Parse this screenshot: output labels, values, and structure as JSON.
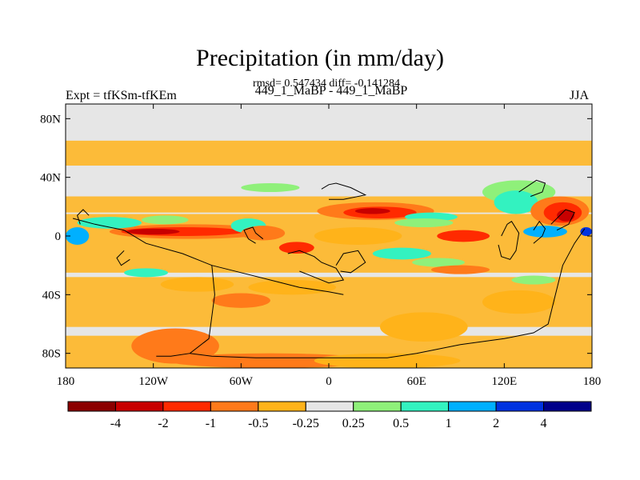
{
  "chart_data": {
    "type": "heatmap",
    "title": "Precipitation (in mm/day)",
    "subtitle": "rmsd= 0.547434 diff= -0.141284",
    "left_label": "Expt = tfKSm-tfKEm",
    "center_label": "449_1_MaBP - 449_1_MaBP",
    "right_label": "JJA",
    "variable": "precipitation difference",
    "units": "mm/day",
    "x_range": [
      -180,
      180
    ],
    "y_range": [
      -90,
      90
    ],
    "x_ticks": [
      {
        "value": -180,
        "label": "180"
      },
      {
        "value": -120,
        "label": "120W"
      },
      {
        "value": -60,
        "label": "60W"
      },
      {
        "value": 0,
        "label": "0"
      },
      {
        "value": 60,
        "label": "60E"
      },
      {
        "value": 120,
        "label": "120E"
      },
      {
        "value": 180,
        "label": "180"
      }
    ],
    "y_ticks": [
      {
        "value": 80,
        "label": "80N"
      },
      {
        "value": 40,
        "label": "40N"
      },
      {
        "value": 0,
        "label": "0"
      },
      {
        "value": -40,
        "label": "40S"
      },
      {
        "value": -80,
        "label": "80S"
      }
    ],
    "colorbar": {
      "colors": [
        "#8b0000",
        "#c80000",
        "#ff2a00",
        "#ff7a1a",
        "#ffb31a",
        "#e6e6e6",
        "#8ff07a",
        "#33f2c0",
        "#00b0ff",
        "#0033e0",
        "#00008a"
      ],
      "labels": [
        "-4",
        "-2",
        "-1",
        "-0.5",
        "-0.25",
        "0.25",
        "0.5",
        "1",
        "2",
        "4"
      ]
    },
    "fields": [
      {
        "lon": -95,
        "lat": 3,
        "rlon": 55,
        "rlat": 5,
        "color": "#ff7a1a"
      },
      {
        "lon": -100,
        "lat": 3,
        "rlon": 42,
        "rlat": 3,
        "color": "#ff2a00"
      },
      {
        "lon": -120,
        "lat": 3,
        "rlon": 18,
        "rlat": 2,
        "color": "#c80000"
      },
      {
        "lon": -150,
        "lat": 9,
        "rlon": 22,
        "rlat": 4,
        "color": "#33f2c0"
      },
      {
        "lon": -112,
        "lat": 11,
        "rlon": 16,
        "rlat": 3,
        "color": "#8ff07a"
      },
      {
        "lon": -55,
        "lat": 7,
        "rlon": 12,
        "rlat": 5,
        "color": "#33f2c0"
      },
      {
        "lon": -45,
        "lat": 2,
        "rlon": 15,
        "rlat": 5,
        "color": "#ff7a1a"
      },
      {
        "lon": -172,
        "lat": 0,
        "rlon": 8,
        "rlat": 6,
        "color": "#00b0ff"
      },
      {
        "lon": -22,
        "lat": -8,
        "rlon": 12,
        "rlat": 4,
        "color": "#ff2a00"
      },
      {
        "lon": -40,
        "lat": 33,
        "rlon": 20,
        "rlat": 3,
        "color": "#8ff07a"
      },
      {
        "lon": 32,
        "lat": 17,
        "rlon": 40,
        "rlat": 6,
        "color": "#ff7a1a"
      },
      {
        "lon": 35,
        "lat": 16,
        "rlon": 25,
        "rlat": 4,
        "color": "#ff2a00"
      },
      {
        "lon": 30,
        "lat": 17,
        "rlon": 12,
        "rlat": 2,
        "color": "#c80000"
      },
      {
        "lon": 20,
        "lat": 0,
        "rlon": 30,
        "rlat": 6,
        "color": "#ffb31a"
      },
      {
        "lon": 70,
        "lat": 13,
        "rlon": 18,
        "rlat": 3,
        "color": "#33f2c0"
      },
      {
        "lon": 65,
        "lat": 9,
        "rlon": 20,
        "rlat": 3,
        "color": "#8ff07a"
      },
      {
        "lon": 92,
        "lat": 0,
        "rlon": 18,
        "rlat": 4,
        "color": "#ff2a00"
      },
      {
        "lon": 130,
        "lat": 30,
        "rlon": 25,
        "rlat": 8,
        "color": "#8ff07a"
      },
      {
        "lon": 128,
        "lat": 23,
        "rlon": 15,
        "rlat": 8,
        "color": "#33f2c0"
      },
      {
        "lon": 158,
        "lat": 17,
        "rlon": 20,
        "rlat": 10,
        "color": "#ff7a1a"
      },
      {
        "lon": 160,
        "lat": 16,
        "rlon": 13,
        "rlat": 7,
        "color": "#ff2a00"
      },
      {
        "lon": 162,
        "lat": 14,
        "rlon": 6,
        "rlat": 4,
        "color": "#c80000"
      },
      {
        "lon": 148,
        "lat": 3,
        "rlon": 15,
        "rlat": 4,
        "color": "#00b0ff"
      },
      {
        "lon": 176,
        "lat": 3,
        "rlon": 4,
        "rlat": 3,
        "color": "#0033e0"
      },
      {
        "lon": 50,
        "lat": -12,
        "rlon": 20,
        "rlat": 4,
        "color": "#33f2c0"
      },
      {
        "lon": 75,
        "lat": -18,
        "rlon": 18,
        "rlat": 3,
        "color": "#8ff07a"
      },
      {
        "lon": 90,
        "lat": -23,
        "rlon": 20,
        "rlat": 3,
        "color": "#ff7a1a"
      },
      {
        "lon": -90,
        "lat": -33,
        "rlon": 25,
        "rlat": 5,
        "color": "#ffb31a"
      },
      {
        "lon": -125,
        "lat": -25,
        "rlon": 15,
        "rlat": 3,
        "color": "#33f2c0"
      },
      {
        "lon": -25,
        "lat": -35,
        "rlon": 30,
        "rlat": 5,
        "color": "#ffb31a"
      },
      {
        "lon": -60,
        "lat": -44,
        "rlon": 20,
        "rlat": 5,
        "color": "#ff7a1a"
      },
      {
        "lon": -105,
        "lat": -75,
        "rlon": 30,
        "rlat": 12,
        "color": "#ff7a1a"
      },
      {
        "lon": -40,
        "lat": -85,
        "rlon": 70,
        "rlat": 5,
        "color": "#ff7a1a"
      },
      {
        "lon": 40,
        "lat": -85,
        "rlon": 50,
        "rlat": 5,
        "color": "#ffb31a"
      },
      {
        "lon": 65,
        "lat": -62,
        "rlon": 30,
        "rlat": 10,
        "color": "#ffb31a"
      },
      {
        "lon": 130,
        "lat": -45,
        "rlon": 25,
        "rlat": 8,
        "color": "#ffb31a"
      },
      {
        "lon": 140,
        "lat": -30,
        "rlon": 15,
        "rlat": 3,
        "color": "#8ff07a"
      }
    ],
    "bands": [
      {
        "lat_top": 65,
        "lat_bot": 48,
        "color": "#ffb31a"
      },
      {
        "lat_top": 27,
        "lat_bot": 16,
        "color": "#ffb31a"
      },
      {
        "lat_top": 15,
        "lat_bot": -25,
        "color": "#ffb31a"
      },
      {
        "lat_top": -28,
        "lat_bot": -62,
        "color": "#ffb31a"
      },
      {
        "lat_top": -68,
        "lat_bot": -90,
        "color": "#ffb31a"
      }
    ],
    "coastlines": [
      [
        [
          -175,
          12
        ],
        [
          -160,
          8
        ],
        [
          -140,
          4
        ],
        [
          -125,
          -5
        ],
        [
          -100,
          -12
        ],
        [
          -80,
          -20
        ],
        [
          -60,
          -25
        ],
        [
          -40,
          -30
        ],
        [
          -20,
          -35
        ],
        [
          0,
          -38
        ],
        [
          10,
          -40
        ]
      ],
      [
        [
          -80,
          -20
        ],
        [
          -78,
          -40
        ],
        [
          -82,
          -70
        ],
        [
          -95,
          -80
        ],
        [
          -108,
          -82
        ],
        [
          -118,
          -82
        ]
      ],
      [
        [
          -95,
          -80
        ],
        [
          -80,
          -82
        ],
        [
          -50,
          -83
        ],
        [
          0,
          -83
        ],
        [
          40,
          -83
        ],
        [
          60,
          -80
        ],
        [
          90,
          -74
        ],
        [
          120,
          -70
        ],
        [
          140,
          -66
        ],
        [
          150,
          -60
        ],
        [
          155,
          -40
        ],
        [
          160,
          -20
        ],
        [
          168,
          -5
        ],
        [
          175,
          5
        ]
      ],
      [
        [
          -28,
          -12
        ],
        [
          -20,
          -10
        ],
        [
          -10,
          -14
        ],
        [
          -5,
          -18
        ],
        [
          5,
          -22
        ],
        [
          10,
          -30
        ],
        [
          0,
          -32
        ],
        [
          -10,
          -28
        ],
        [
          -20,
          -24
        ]
      ],
      [
        [
          -5,
          32
        ],
        [
          0,
          35
        ],
        [
          5,
          36
        ],
        [
          15,
          33
        ],
        [
          25,
          28
        ],
        [
          10,
          25
        ],
        [
          0,
          25
        ]
      ],
      [
        [
          -45,
          -2
        ],
        [
          -50,
          2
        ],
        [
          -52,
          6
        ],
        [
          -58,
          4
        ],
        [
          -55,
          -2
        ],
        [
          -50,
          -5
        ]
      ],
      [
        [
          5,
          -20
        ],
        [
          10,
          -12
        ],
        [
          20,
          -10
        ],
        [
          25,
          -18
        ],
        [
          15,
          -25
        ],
        [
          8,
          -24
        ]
      ],
      [
        [
          118,
          0
        ],
        [
          122,
          8
        ],
        [
          125,
          10
        ],
        [
          130,
          2
        ],
        [
          128,
          -10
        ],
        [
          124,
          -16
        ],
        [
          118,
          -14
        ],
        [
          116,
          -6
        ]
      ],
      [
        [
          140,
          -5
        ],
        [
          146,
          0
        ],
        [
          148,
          5
        ],
        [
          144,
          10
        ],
        [
          140,
          4
        ]
      ],
      [
        [
          130,
          30
        ],
        [
          136,
          34
        ],
        [
          142,
          38
        ],
        [
          148,
          36
        ],
        [
          146,
          30
        ],
        [
          138,
          27
        ]
      ],
      [
        [
          152,
          8
        ],
        [
          158,
          14
        ],
        [
          162,
          18
        ],
        [
          168,
          16
        ],
        [
          164,
          8
        ],
        [
          156,
          4
        ]
      ],
      [
        [
          -170,
          8
        ],
        [
          -172,
          14
        ],
        [
          -168,
          18
        ],
        [
          -164,
          14
        ]
      ],
      [
        [
          -140,
          -10
        ],
        [
          -145,
          -15
        ],
        [
          -142,
          -20
        ],
        [
          -136,
          -16
        ]
      ]
    ]
  }
}
